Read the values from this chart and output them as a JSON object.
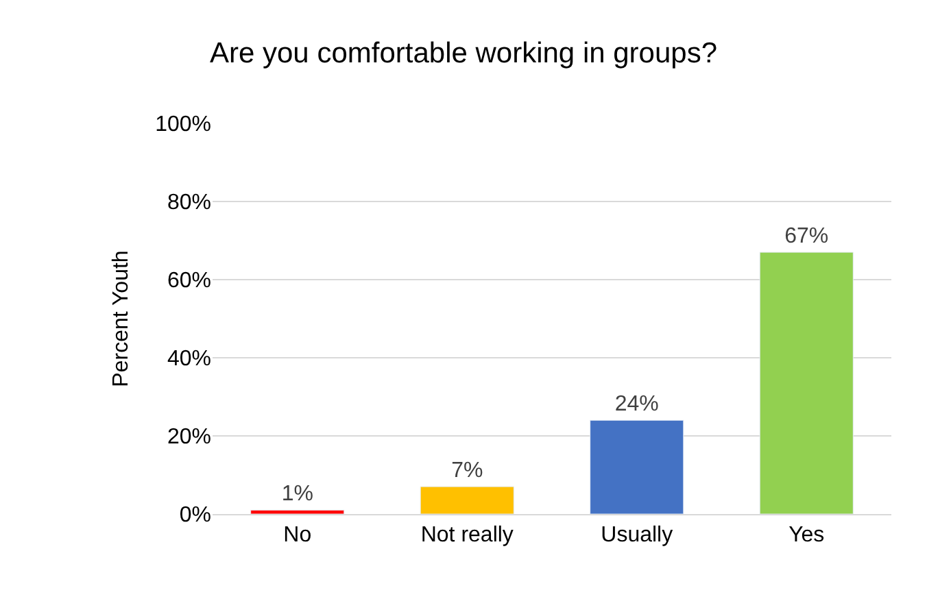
{
  "chart_data": {
    "type": "bar",
    "title": "Are you comfortable working in groups?",
    "ylabel": "Percent Youth",
    "categories": [
      "No",
      "Not really",
      "Usually",
      "Yes"
    ],
    "values": [
      1,
      7,
      24,
      67
    ],
    "colors": [
      "#ff0000",
      "#ffc000",
      "#4472c4",
      "#92d050"
    ],
    "value_labels": [
      "1%",
      "7%",
      "24%",
      "67%"
    ],
    "ylim": [
      0,
      100
    ],
    "yticks": [
      {
        "value": 0,
        "label": "0%"
      },
      {
        "value": 20,
        "label": "20%"
      },
      {
        "value": 40,
        "label": "40%"
      },
      {
        "value": 60,
        "label": "60%"
      },
      {
        "value": 80,
        "label": "80%"
      },
      {
        "value": 100,
        "label": "100%"
      }
    ],
    "grid": "y",
    "legend": false
  }
}
